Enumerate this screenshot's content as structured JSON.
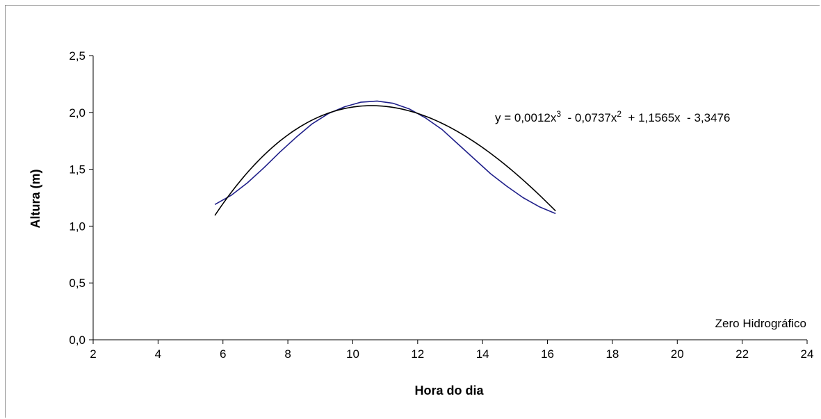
{
  "chart_data": {
    "type": "line",
    "title": "",
    "xlabel": "Hora do dia",
    "ylabel": "Altura (m)",
    "xlim": [
      2,
      24
    ],
    "ylim": [
      0,
      2.5
    ],
    "xticks": [
      2,
      4,
      6,
      8,
      10,
      12,
      14,
      16,
      18,
      20,
      22,
      24
    ],
    "yticks": [
      0.0,
      0.5,
      1.0,
      1.5,
      2.0,
      2.5
    ],
    "xtick_labels": [
      "2",
      "4",
      "6",
      "8",
      "10",
      "12",
      "14",
      "16",
      "18",
      "20",
      "22",
      "24"
    ],
    "ytick_labels": [
      "0,0",
      "0,5",
      "1,0",
      "1,5",
      "2,0",
      "2,5"
    ],
    "grid": false,
    "legend": "none",
    "series": [
      {
        "kind": "observed",
        "color": "#1f1f8a",
        "x": [
          5.75,
          6.25,
          6.75,
          7.25,
          7.75,
          8.25,
          8.75,
          9.25,
          9.75,
          10.25,
          10.75,
          11.25,
          11.75,
          12.25,
          12.75,
          13.25,
          13.75,
          14.25,
          14.75,
          15.25,
          15.75,
          16.25
        ],
        "y": [
          1.19,
          1.27,
          1.38,
          1.51,
          1.65,
          1.78,
          1.9,
          1.99,
          2.05,
          2.09,
          2.1,
          2.08,
          2.03,
          1.95,
          1.85,
          1.72,
          1.59,
          1.46,
          1.35,
          1.25,
          1.17,
          1.11
        ]
      },
      {
        "kind": "trendline",
        "color": "#000000",
        "polynomial": [
          0.0012,
          -0.0737,
          1.1565,
          -3.3476
        ],
        "x_range": [
          5.75,
          16.25
        ]
      }
    ],
    "annotations": {
      "equation_prefix": "y = 0,0012x",
      "equation_sup1": "3",
      "equation_mid1": "  - 0,0737x",
      "equation_sup2": "2",
      "equation_tail": "  + 1,1565x  - 3,3476",
      "datum_label": "Zero Hidrográfico"
    }
  }
}
